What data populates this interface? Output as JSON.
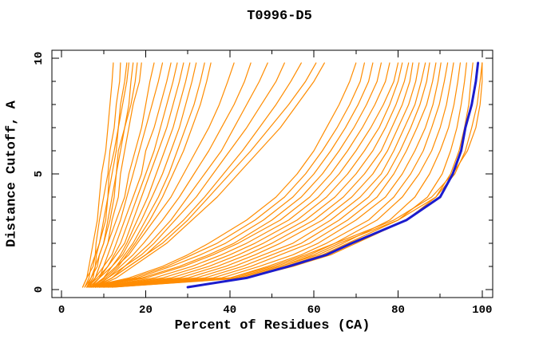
{
  "page": {
    "background": "#ffffff",
    "text_color": "#000000"
  },
  "chart_data": {
    "type": "line",
    "title": "T0996-D5",
    "xlabel": "Percent of Residues (CA)",
    "ylabel": "Distance Cutoff, A",
    "xlim": [
      -2.3,
      102.5
    ],
    "ylim": [
      -0.35,
      10.35
    ],
    "x_major_ticks": [
      0,
      20,
      40,
      60,
      80,
      100
    ],
    "x_minor_ticks": [
      10,
      30,
      50,
      70,
      90
    ],
    "y_major_ticks": [
      0,
      5,
      10
    ],
    "y_minor_ticks": [
      1,
      2,
      3,
      4,
      6,
      7,
      8,
      9
    ],
    "grid": false,
    "legend": "none",
    "axis_color": "#000000",
    "model_color": "#ff8c00",
    "best_color": "#1c1ccd",
    "cutoffs": [
      0.1,
      0.5,
      1,
      1.5,
      2,
      3,
      4,
      5,
      6,
      7,
      8,
      9,
      9.8
    ],
    "best_model_percents": [
      30,
      44,
      54,
      63,
      69,
      82,
      90,
      93,
      95,
      96,
      97.5,
      98.5,
      99
    ],
    "model_percents": [
      [
        5,
        6,
        6.5,
        7,
        7.5,
        8.5,
        9,
        9.5,
        10.5,
        11,
        11.5,
        12,
        12.3
      ],
      [
        5.5,
        6.5,
        7,
        8,
        8.2,
        9,
        10,
        11,
        11.5,
        12.5,
        13,
        13.8,
        14
      ],
      [
        6,
        7,
        8,
        8.3,
        9,
        10,
        11,
        11.3,
        12.5,
        13.5,
        14,
        15,
        15.5
      ],
      [
        5,
        6,
        7.5,
        8,
        9,
        10.5,
        11,
        12,
        13,
        13.5,
        14.5,
        15.5,
        16
      ],
      [
        6,
        7.5,
        8,
        9,
        10,
        11,
        12,
        13,
        13.5,
        15,
        16,
        16.5,
        17
      ],
      [
        5.5,
        7,
        8.5,
        9,
        10,
        11.5,
        12.5,
        13,
        14,
        15,
        16.5,
        17.5,
        18
      ],
      [
        6,
        8,
        9,
        10,
        11,
        12,
        13.5,
        14,
        15,
        16,
        17,
        18.5,
        19
      ],
      [
        6,
        8,
        9,
        10,
        11,
        13,
        15,
        16,
        17.5,
        19,
        20,
        21,
        22
      ],
      [
        6.5,
        8,
        10,
        11,
        12,
        14,
        15.5,
        17,
        18.5,
        20,
        21.5,
        23,
        24
      ],
      [
        7,
        9,
        10,
        12,
        13,
        15,
        17,
        19,
        20,
        22,
        23.5,
        25,
        26
      ],
      [
        6,
        8.5,
        11,
        12.5,
        14,
        16,
        18,
        20,
        22,
        23.5,
        25,
        26.5,
        27.5
      ],
      [
        7,
        9,
        11,
        13,
        15,
        17,
        19,
        21,
        23,
        25,
        26.5,
        28,
        29
      ],
      [
        6.5,
        9,
        12,
        14,
        15.5,
        18,
        20.5,
        22.5,
        24.5,
        26.5,
        28,
        29.5,
        30.5
      ],
      [
        7,
        10,
        12,
        14.5,
        16,
        19,
        21.5,
        24,
        26,
        28,
        29.5,
        31,
        32
      ],
      [
        7.5,
        10,
        13,
        15,
        17,
        20,
        23,
        25.5,
        27.5,
        29.5,
        31.5,
        33,
        34
      ],
      [
        7,
        10.5,
        13.5,
        15.5,
        17.5,
        21,
        24,
        26.5,
        29,
        31,
        33,
        34.5,
        35.5
      ],
      [
        7,
        10,
        13,
        16,
        18,
        22,
        26,
        29,
        32,
        35,
        37.5,
        39.5,
        41
      ],
      [
        7.5,
        11,
        14,
        17,
        19.5,
        24,
        28,
        31.5,
        35,
        38,
        41,
        43.5,
        45
      ],
      [
        8,
        11,
        15,
        18,
        21,
        26,
        30,
        34,
        38,
        41,
        44,
        47,
        49
      ],
      [
        8,
        12,
        15,
        19,
        22,
        27,
        32,
        36,
        40,
        44,
        47.5,
        51,
        53
      ],
      [
        7.5,
        12,
        16,
        20,
        23,
        29,
        34,
        38.5,
        43,
        47,
        51,
        54.5,
        57
      ],
      [
        8,
        12,
        16,
        20,
        24,
        30,
        35,
        40,
        45,
        49.5,
        54,
        58,
        60.5
      ],
      [
        8,
        13,
        17,
        21,
        25,
        31,
        37,
        42,
        47,
        52,
        56,
        60,
        62.5
      ],
      [
        6,
        16,
        24,
        30,
        35,
        44,
        51,
        56,
        60,
        63,
        66,
        68.5,
        70
      ],
      [
        6.5,
        17,
        25,
        31,
        37,
        46,
        53,
        58,
        62,
        65.5,
        68.5,
        71,
        72
      ],
      [
        7,
        18,
        26,
        33,
        39,
        48,
        55,
        60,
        64,
        67.5,
        70.5,
        73,
        74
      ],
      [
        7,
        19,
        28,
        35,
        41,
        50,
        57,
        62,
        66,
        69.5,
        72.5,
        75,
        76
      ],
      [
        7.5,
        20,
        29,
        36,
        42,
        52,
        59,
        64,
        68,
        71.5,
        74.5,
        77,
        78
      ],
      [
        8,
        22,
        31,
        38,
        44,
        54,
        61,
        66,
        70,
        73.5,
        76.5,
        79,
        80
      ],
      [
        8,
        24,
        33,
        40,
        46,
        56,
        63,
        68,
        72,
        75.5,
        78,
        80,
        81
      ],
      [
        8.5,
        26,
        35,
        42,
        48,
        58,
        65,
        70,
        74,
        77,
        79.5,
        81.5,
        82.5
      ],
      [
        9,
        28,
        37,
        44,
        50,
        60,
        67,
        72,
        76,
        78.5,
        81,
        82.8,
        83.5
      ],
      [
        9,
        30,
        39,
        46,
        52,
        62,
        69,
        74,
        77.5,
        80,
        82.5,
        84.2,
        85
      ],
      [
        9.5,
        32,
        41,
        48,
        55,
        64,
        71,
        76,
        79,
        81.5,
        84,
        85.5,
        86.5
      ],
      [
        10,
        34,
        43,
        50,
        57,
        66,
        73,
        77.5,
        80.5,
        83,
        85.2,
        86.8,
        87.5
      ],
      [
        10,
        36,
        45,
        52,
        59,
        68,
        75,
        79,
        82,
        84.5,
        86.8,
        88.2,
        89
      ],
      [
        10.5,
        38,
        47,
        55,
        61,
        70,
        77,
        81,
        84,
        86.5,
        88.3,
        89.5,
        90.2
      ],
      [
        11,
        40,
        49,
        57,
        63,
        73,
        79,
        83,
        86,
        88,
        89.8,
        91,
        91.8
      ],
      [
        11,
        41,
        51,
        59,
        65,
        75,
        81,
        85,
        88,
        90,
        91.5,
        92.5,
        93.2
      ],
      [
        11.5,
        42,
        52,
        61,
        67,
        78,
        84,
        87.5,
        90,
        92,
        93.3,
        94.2,
        94.8
      ],
      [
        12,
        43,
        53,
        62,
        68,
        80,
        87,
        90.5,
        92.5,
        94,
        95,
        95.8,
        96.3
      ],
      [
        12,
        44,
        55,
        64,
        70,
        82,
        89,
        92.5,
        94.5,
        95.8,
        96.8,
        97.3,
        97.8
      ],
      [
        10,
        42,
        52,
        60,
        66,
        80,
        89,
        93.5,
        96,
        97.5,
        98.8,
        99.5,
        100
      ],
      [
        9,
        40,
        50,
        58,
        65,
        79,
        88,
        93,
        96.5,
        98.5,
        99.5,
        100,
        100
      ]
    ]
  }
}
